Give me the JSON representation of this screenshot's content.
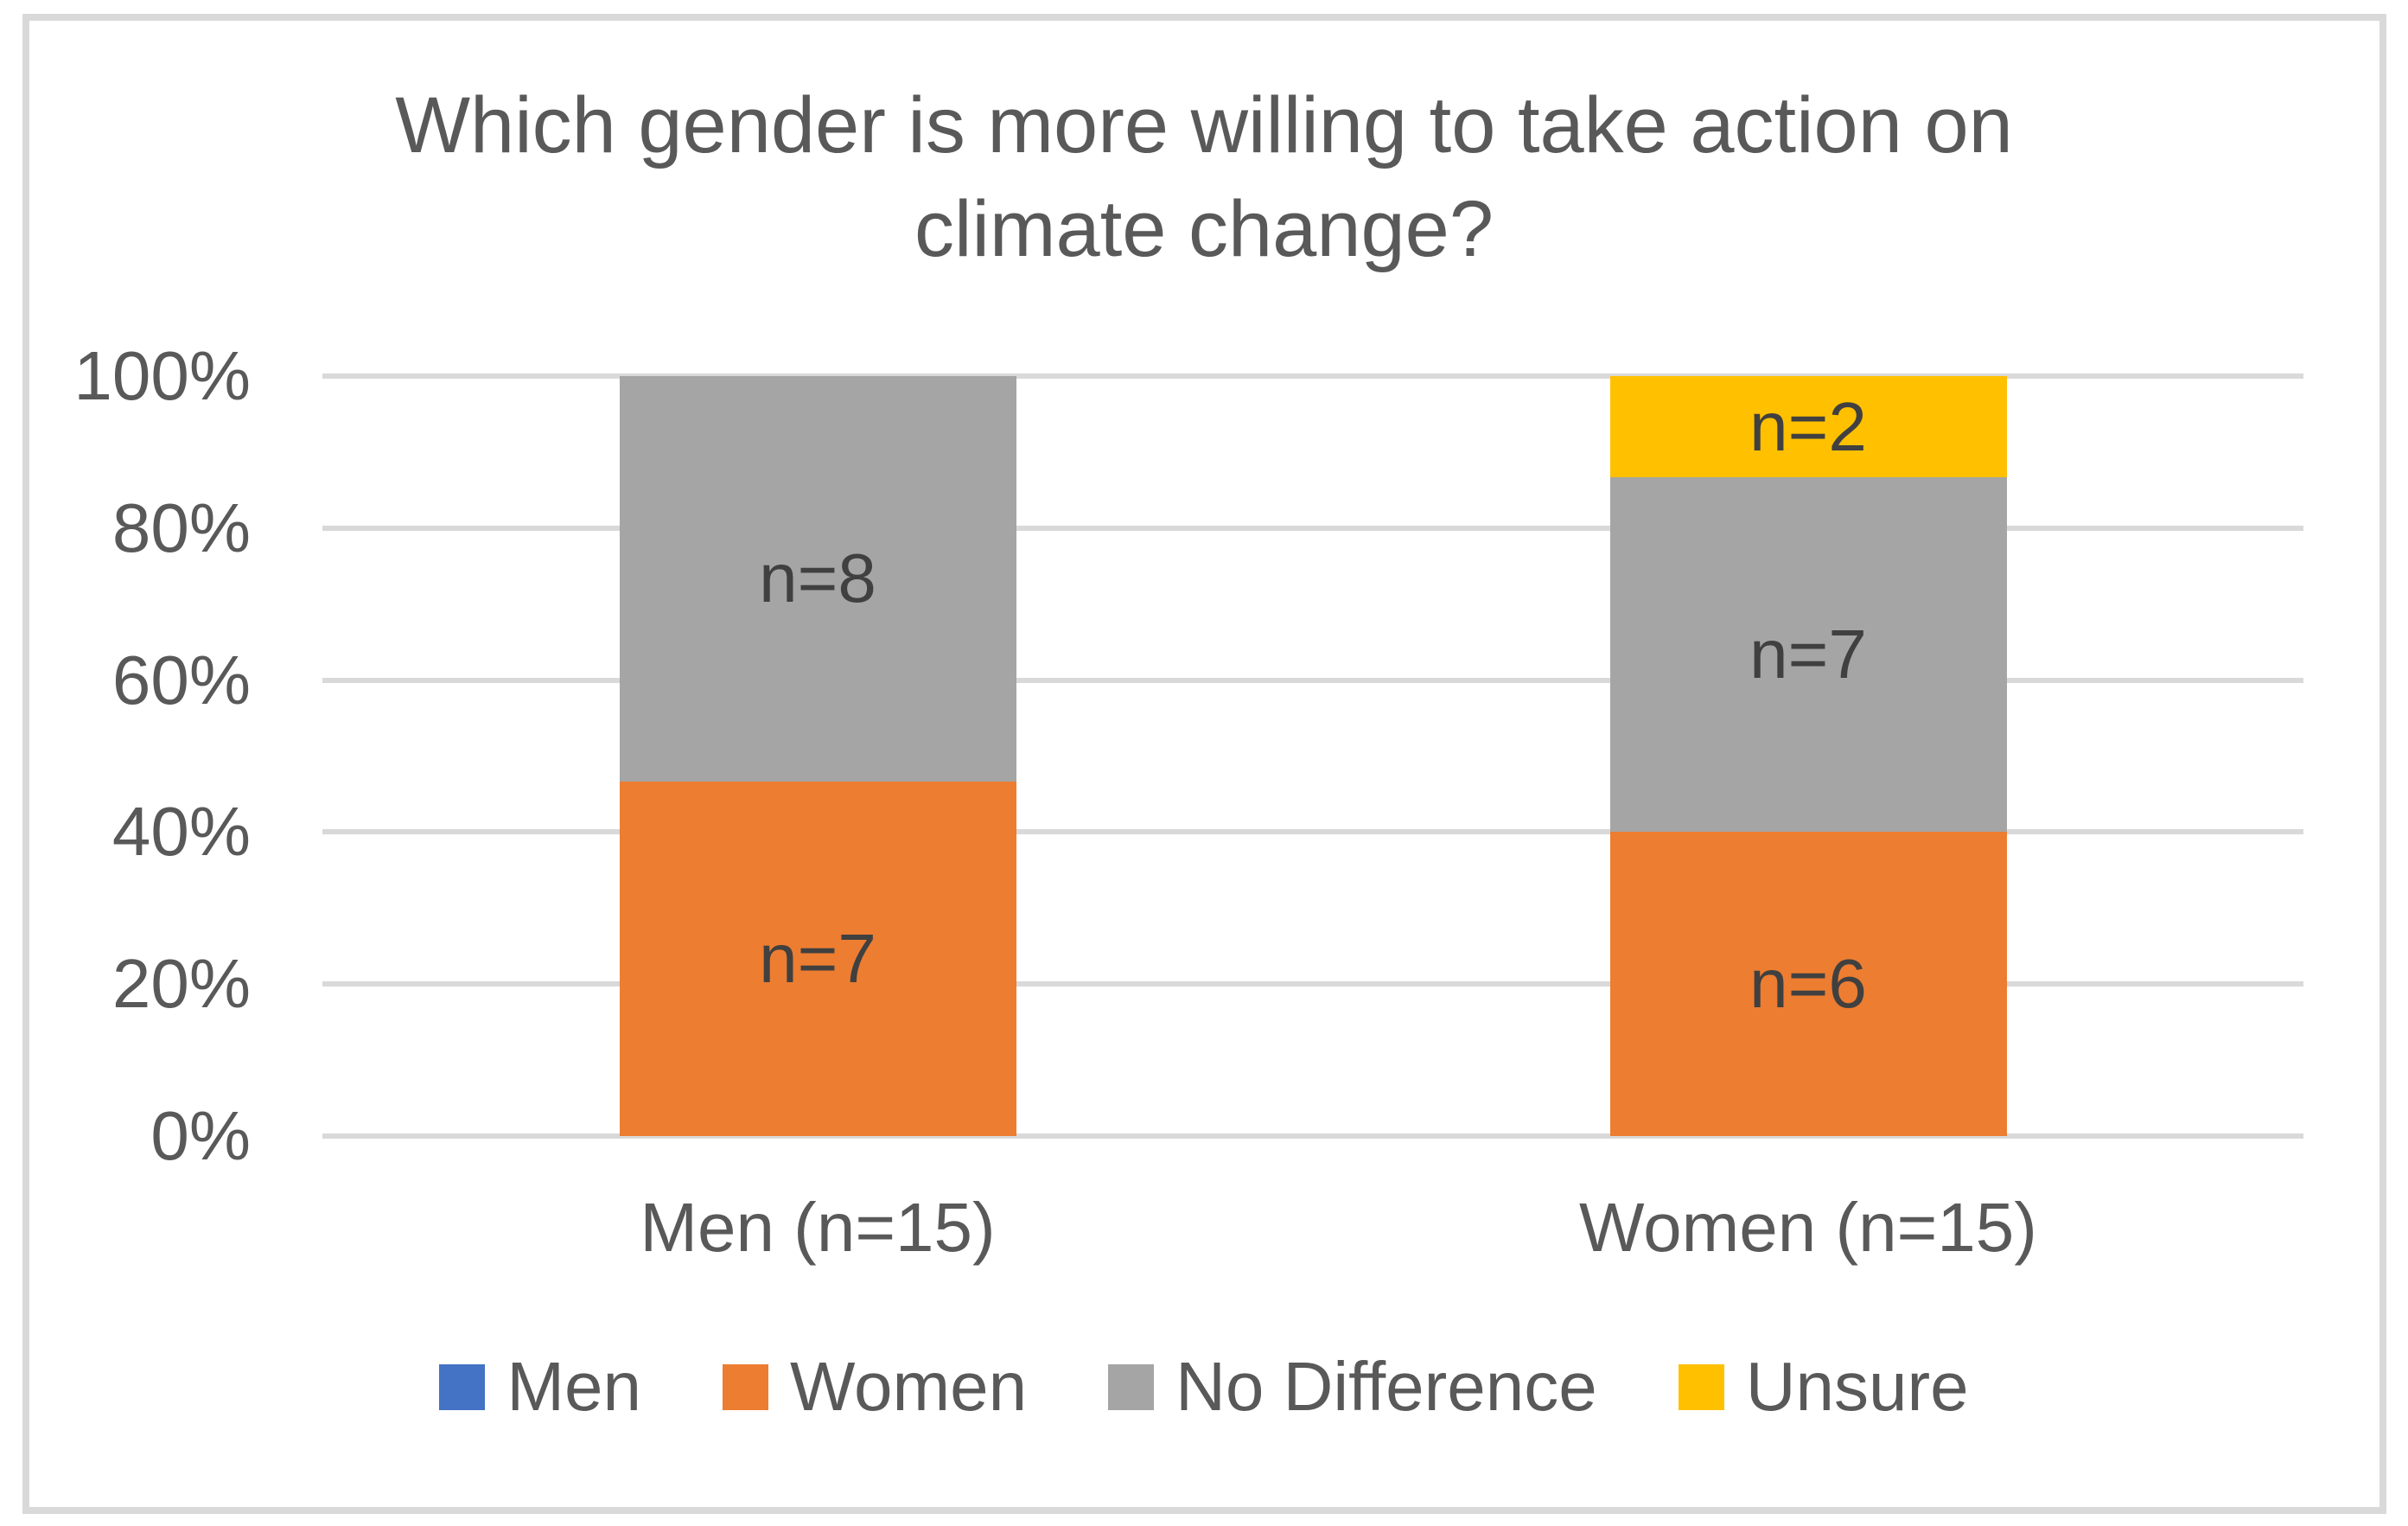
{
  "chart_data": {
    "type": "bar",
    "stacked": true,
    "title": "Which gender is more willing to take action on climate change?",
    "categories": [
      "Men (n=15)",
      "Women (n=15)"
    ],
    "n_per_category": 15,
    "series": [
      {
        "name": "Men",
        "color": "#4472C4",
        "values": [
          0,
          0
        ],
        "labels": [
          null,
          null
        ]
      },
      {
        "name": "Women",
        "color": "#ED7D31",
        "values": [
          7,
          6
        ],
        "labels": [
          "n=7",
          "n=6"
        ]
      },
      {
        "name": "No Difference",
        "color": "#A5A5A5",
        "values": [
          8,
          7
        ],
        "labels": [
          "n=8",
          "n=7"
        ]
      },
      {
        "name": "Unsure",
        "color": "#FFC000",
        "values": [
          0,
          2
        ],
        "labels": [
          null,
          "n=2"
        ]
      }
    ],
    "y_axis": {
      "min": 0,
      "max": 100,
      "unit": "%",
      "ticks": [
        "0%",
        "20%",
        "40%",
        "60%",
        "80%",
        "100%"
      ]
    },
    "xlabel": "",
    "ylabel": "",
    "grid": true,
    "legend": {
      "position": "bottom"
    },
    "colors": {
      "gridline": "#D9D9D9",
      "border": "#D9D9D9",
      "title_text": "#595959",
      "axis_text": "#595959",
      "data_label_text": "#404040"
    }
  }
}
